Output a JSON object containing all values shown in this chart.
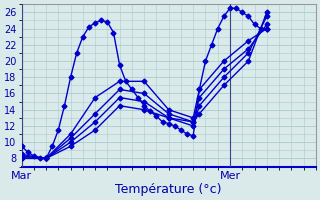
{
  "xlabel": "Température (°c)",
  "ylabel": "",
  "xlim": [
    0,
    48
  ],
  "ylim": [
    7,
    27
  ],
  "yticks": [
    8,
    10,
    12,
    14,
    16,
    18,
    20,
    22,
    24,
    26
  ],
  "xtick_positions": [
    0,
    34
  ],
  "xtick_labels": [
    "Mar",
    "Mer"
  ],
  "background_color": "#daeaea",
  "grid_color": "#aacccc",
  "line_color": "#0000cc",
  "marker": "D",
  "markersize": 2.5,
  "linewidth": 1.0,
  "lines": [
    [
      0,
      9.5,
      1,
      8.8,
      2,
      8.3,
      3,
      8.1,
      4,
      8.0,
      5,
      9.5,
      6,
      11.5,
      7,
      14.5,
      8,
      18.0,
      9,
      21.0,
      10,
      23.0,
      11,
      24.2,
      12,
      24.7,
      13,
      25.0,
      14,
      24.8,
      15,
      23.5,
      16,
      19.5,
      17,
      17.5,
      18,
      16.5,
      19,
      15.5,
      20,
      14.5,
      21,
      13.8,
      22,
      13.2,
      23,
      12.5,
      24,
      12.3,
      25,
      12.0,
      26,
      11.5,
      27,
      11.0,
      28,
      10.8,
      29,
      16.5,
      30,
      20.0,
      31,
      22.0,
      32,
      24.0,
      33,
      25.5,
      34,
      26.5,
      35,
      26.5,
      36,
      26.0,
      37,
      25.5,
      38,
      24.5,
      39,
      24.0,
      40,
      24.0
    ],
    [
      0,
      8.5,
      4,
      8.0,
      8,
      11.0,
      12,
      15.5,
      16,
      17.5,
      20,
      17.5,
      24,
      14.0,
      28,
      13.0,
      29,
      16.5,
      33,
      20.0,
      37,
      22.5,
      40,
      24.0
    ],
    [
      0,
      8.3,
      4,
      8.0,
      8,
      10.5,
      12,
      13.5,
      16,
      16.5,
      20,
      16.0,
      24,
      13.5,
      28,
      12.5,
      29,
      15.5,
      33,
      19.0,
      37,
      21.5,
      40,
      24.5
    ],
    [
      0,
      8.1,
      4,
      8.0,
      8,
      10.0,
      12,
      12.5,
      16,
      15.5,
      20,
      15.0,
      24,
      13.0,
      28,
      12.0,
      29,
      14.5,
      33,
      18.0,
      37,
      21.0,
      40,
      25.5
    ],
    [
      0,
      8.0,
      4,
      8.0,
      8,
      9.5,
      12,
      11.5,
      16,
      14.5,
      20,
      14.0,
      24,
      13.0,
      28,
      12.5,
      29,
      13.5,
      33,
      17.0,
      37,
      20.0,
      40,
      26.0
    ]
  ],
  "vline_x": 34,
  "vline_color": "#334488",
  "xlabel_fontsize": 9,
  "xlabel_color": "#0000aa",
  "tick_color": "#0000aa",
  "tick_fontsize": 7
}
